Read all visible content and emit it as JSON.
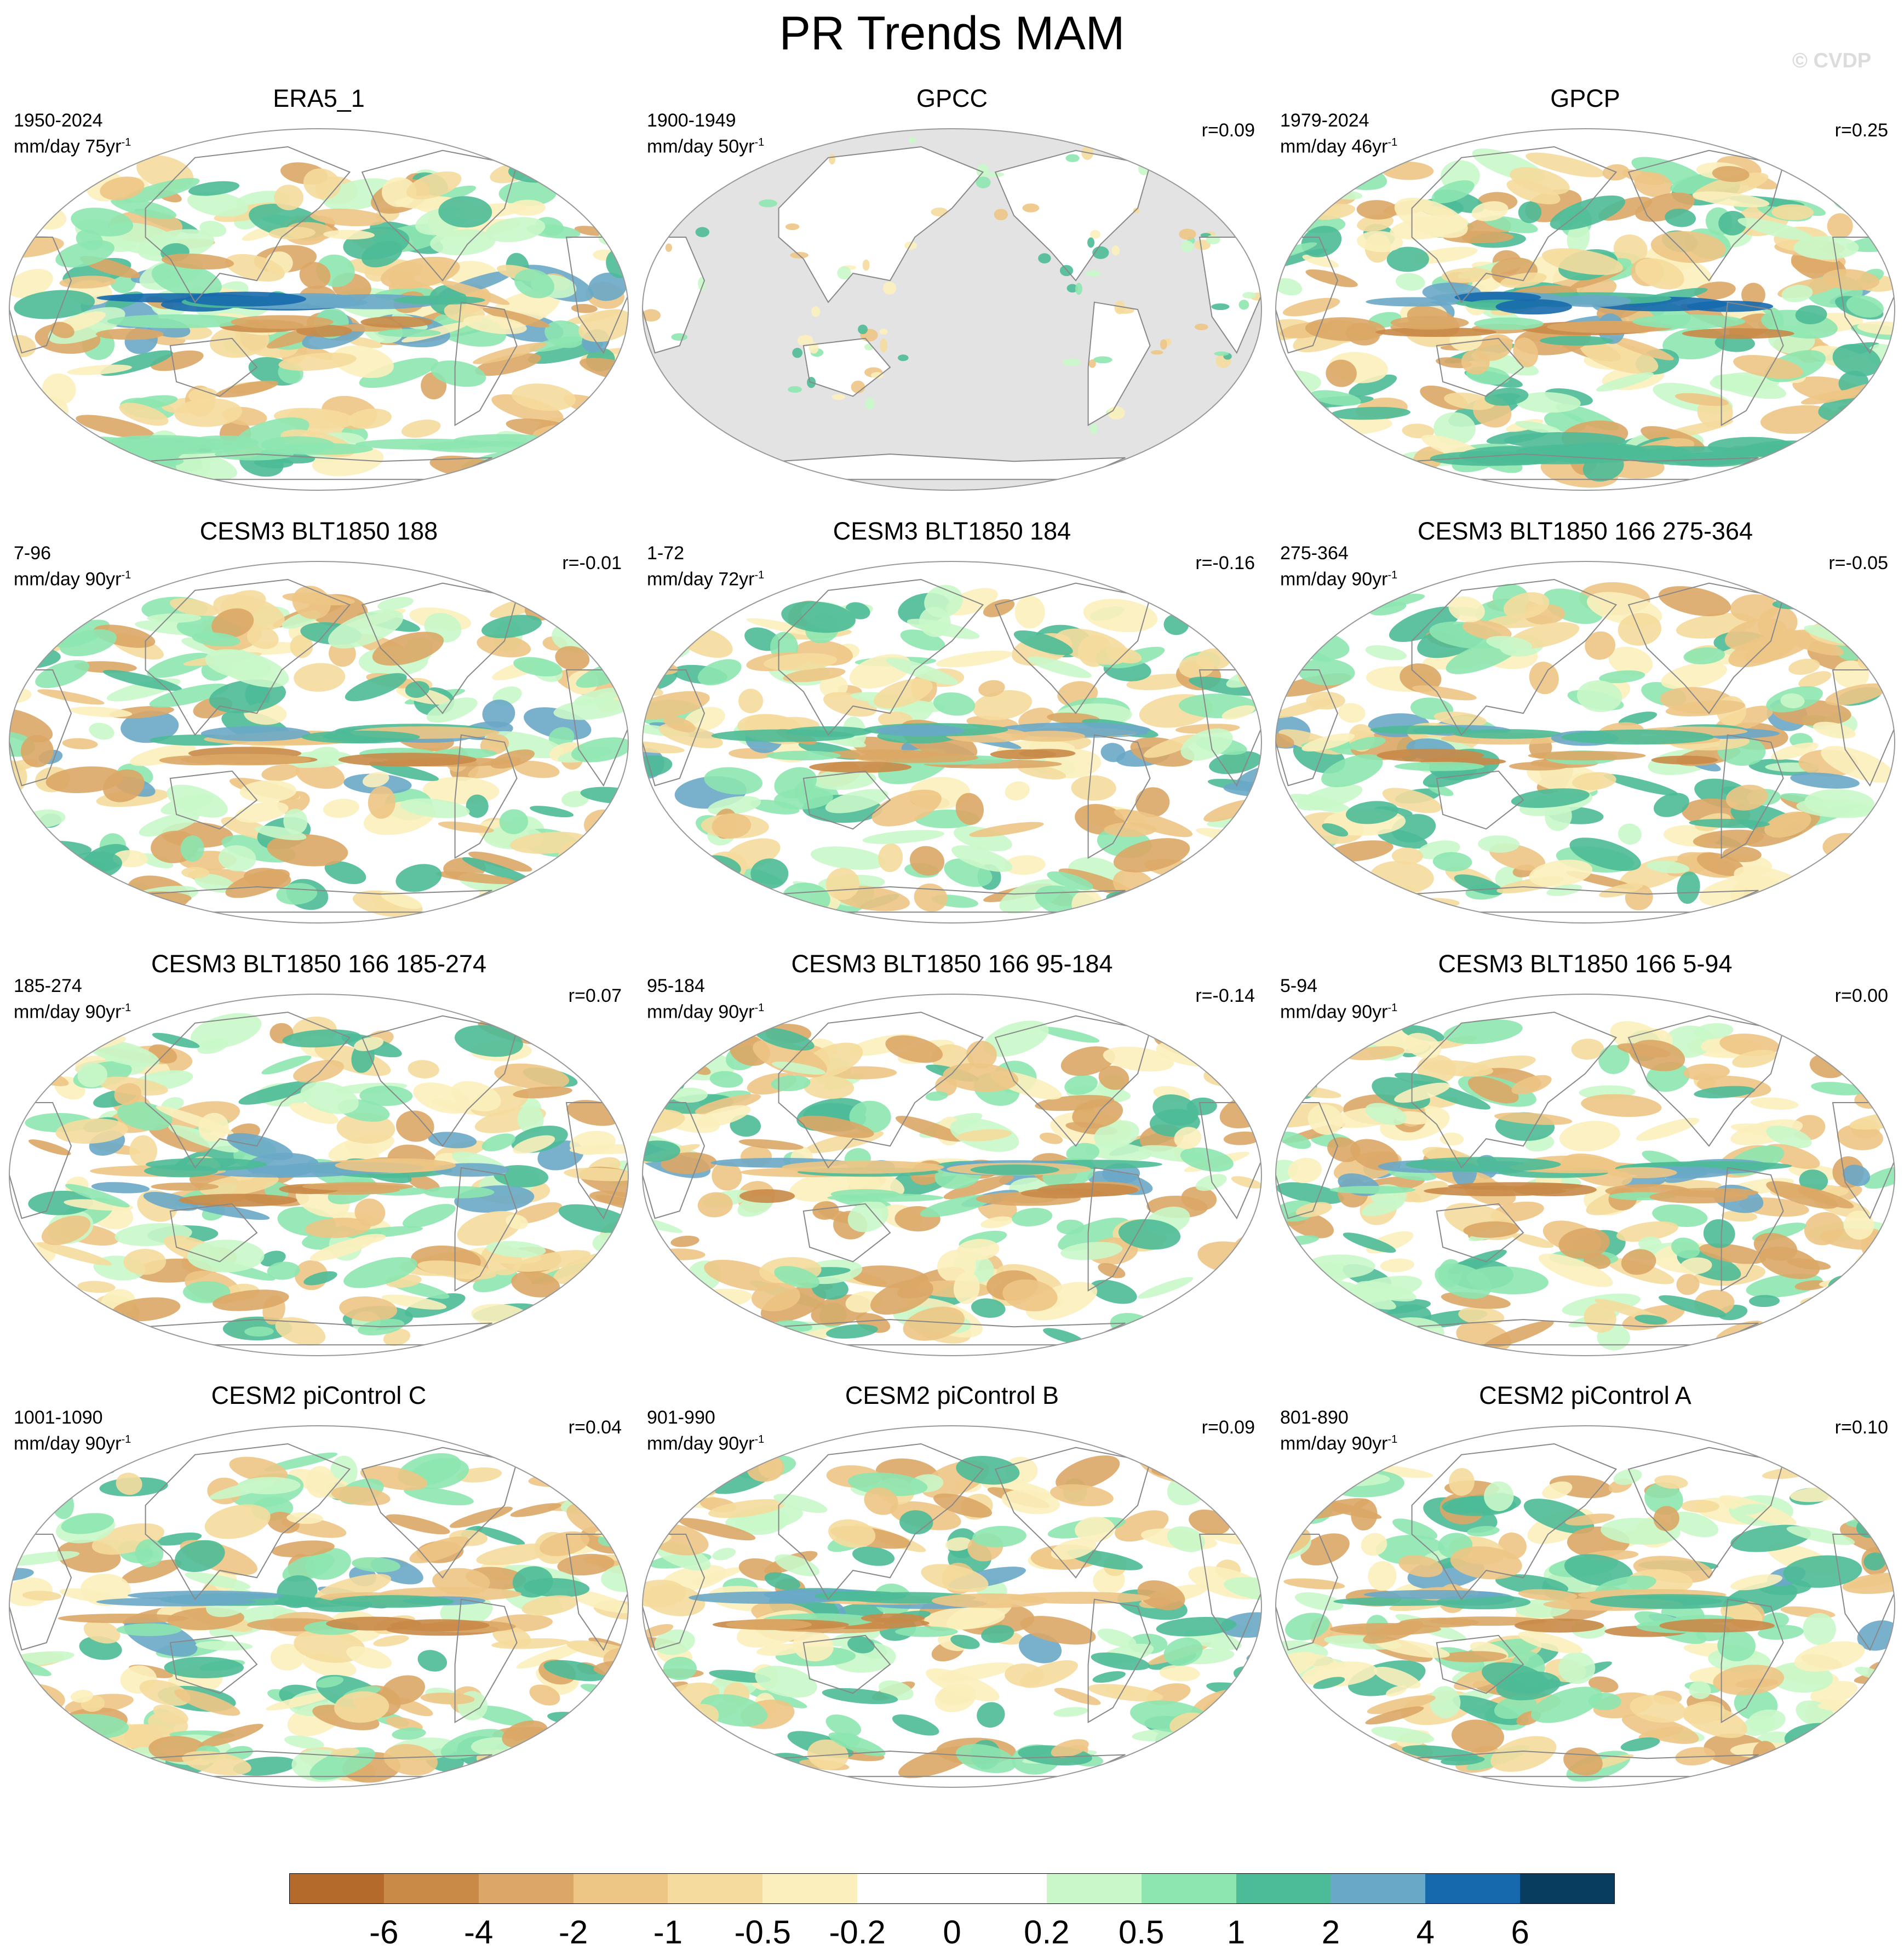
{
  "title": "PR Trends MAM",
  "copyright": "© CVDP",
  "colors": {
    "ocean_background": "#ffffff",
    "land_missing": "#e3e3e3",
    "coast": "#888888",
    "frame": "#999999"
  },
  "panels": [
    {
      "title": "ERA5_1",
      "period": "1950-2024",
      "units": "mm/day 75yr",
      "units_sup": "-1",
      "corr": "",
      "style": "obs"
    },
    {
      "title": "GPCC",
      "period": "1900-1949",
      "units": "mm/day 50yr",
      "units_sup": "-1",
      "corr": "r=0.09",
      "style": "land"
    },
    {
      "title": "GPCP",
      "period": "1979-2024",
      "units": "mm/day 46yr",
      "units_sup": "-1",
      "corr": "r=0.25",
      "style": "gpcp"
    },
    {
      "title": "CESM3 BLT1850 188",
      "period": "7-96",
      "units": "mm/day 90yr",
      "units_sup": "-1",
      "corr": "r=-0.01",
      "style": "model"
    },
    {
      "title": "CESM3 BLT1850 184",
      "period": "1-72",
      "units": "mm/day 72yr",
      "units_sup": "-1",
      "corr": "r=-0.16",
      "style": "model"
    },
    {
      "title": "CESM3 BLT1850 166 275-364",
      "period": "275-364",
      "units": "mm/day 90yr",
      "units_sup": "-1",
      "corr": "r=-0.05",
      "style": "model"
    },
    {
      "title": "CESM3 BLT1850 166 185-274",
      "period": "185-274",
      "units": "mm/day 90yr",
      "units_sup": "-1",
      "corr": "r=0.07",
      "style": "model"
    },
    {
      "title": "CESM3 BLT1850 166 95-184",
      "period": "95-184",
      "units": "mm/day 90yr",
      "units_sup": "-1",
      "corr": "r=-0.14",
      "style": "model"
    },
    {
      "title": "CESM3 BLT1850 166 5-94",
      "period": "5-94",
      "units": "mm/day 90yr",
      "units_sup": "-1",
      "corr": "r=0.00",
      "style": "model"
    },
    {
      "title": "CESM2 piControl C",
      "period": "1001-1090",
      "units": "mm/day 90yr",
      "units_sup": "-1",
      "corr": "r=0.04",
      "style": "model"
    },
    {
      "title": "CESM2 piControl B",
      "period": "901-990",
      "units": "mm/day 90yr",
      "units_sup": "-1",
      "corr": "r=0.09",
      "style": "model"
    },
    {
      "title": "CESM2 piControl A",
      "period": "801-890",
      "units": "mm/day 90yr",
      "units_sup": "-1",
      "corr": "r=0.10",
      "style": "model"
    }
  ],
  "colorbar": {
    "colors": [
      "#b36a2a",
      "#c98a48",
      "#dba766",
      "#edc585",
      "#f5db9d",
      "#fbefbd",
      "#ffffff",
      "#ffffff",
      "#c9f7c9",
      "#8de6b0",
      "#4cbb97",
      "#6aa8c8",
      "#1669ad",
      "#083d60"
    ],
    "labels": [
      "-6",
      "-4",
      "-2",
      "-1",
      "-0.5",
      "-0.2",
      "0",
      "0.2",
      "0.5",
      "1",
      "2",
      "4",
      "6"
    ]
  }
}
